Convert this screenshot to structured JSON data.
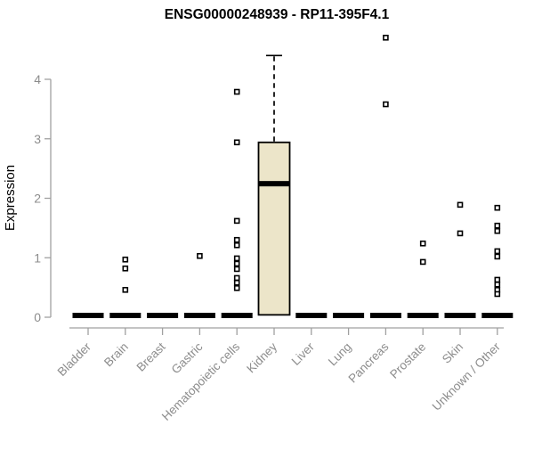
{
  "chart_data": {
    "type": "boxplot",
    "title": "ENSG00000248939 - RP11-395F4.1",
    "ylabel": "Expression",
    "xlabel": "",
    "ylim": [
      0,
      4.75
    ],
    "yticks": [
      0,
      1,
      2,
      3,
      4
    ],
    "grid": false,
    "legend": null,
    "categories": [
      "Bladder",
      "Brain",
      "Breast",
      "Gastric",
      "Hematopoietic cells",
      "Kidney",
      "Liver",
      "Lung",
      "Pancreas",
      "Prostate",
      "Skin",
      "Unknown / Other"
    ],
    "boxes": [
      {
        "category": "Bladder",
        "q1": 0,
        "median": 0,
        "q3": 0,
        "whisker_low": 0,
        "whisker_high": 0,
        "outliers": []
      },
      {
        "category": "Brain",
        "q1": 0,
        "median": 0,
        "q3": 0,
        "whisker_low": 0,
        "whisker_high": 0,
        "outliers": [
          0.97,
          0.82,
          0.46
        ]
      },
      {
        "category": "Breast",
        "q1": 0,
        "median": 0,
        "q3": 0,
        "whisker_low": 0,
        "whisker_high": 0,
        "outliers": []
      },
      {
        "category": "Gastric",
        "q1": 0,
        "median": 0,
        "q3": 0,
        "whisker_low": 0,
        "whisker_high": 0,
        "outliers": [
          1.03
        ]
      },
      {
        "category": "Hematopoietic cells",
        "q1": 0,
        "median": 0,
        "q3": 0,
        "whisker_low": 0,
        "whisker_high": 0,
        "outliers": [
          3.79,
          2.94,
          1.62,
          1.3,
          1.21,
          0.99,
          0.9,
          0.81,
          0.66,
          0.58,
          0.49
        ]
      },
      {
        "category": "Kidney",
        "q1": 0.04,
        "median": 2.23,
        "q3": 2.94,
        "whisker_low": 0.04,
        "whisker_high": 4.4,
        "outliers": []
      },
      {
        "category": "Liver",
        "q1": 0,
        "median": 0,
        "q3": 0,
        "whisker_low": 0,
        "whisker_high": 0,
        "outliers": []
      },
      {
        "category": "Lung",
        "q1": 0,
        "median": 0,
        "q3": 0,
        "whisker_low": 0,
        "whisker_high": 0,
        "outliers": []
      },
      {
        "category": "Pancreas",
        "q1": 0,
        "median": 0,
        "q3": 0,
        "whisker_low": 0,
        "whisker_high": 0,
        "outliers": [
          4.7,
          3.58
        ]
      },
      {
        "category": "Prostate",
        "q1": 0,
        "median": 0,
        "q3": 0,
        "whisker_low": 0,
        "whisker_high": 0,
        "outliers": [
          1.24,
          0.93
        ]
      },
      {
        "category": "Skin",
        "q1": 0,
        "median": 0,
        "q3": 0,
        "whisker_low": 0,
        "whisker_high": 0,
        "outliers": [
          1.89,
          1.41
        ]
      },
      {
        "category": "Unknown / Other",
        "q1": 0,
        "median": 0,
        "q3": 0,
        "whisker_low": 0,
        "whisker_high": 0,
        "outliers": [
          1.84,
          1.54,
          1.45,
          1.11,
          1.02,
          0.63,
          0.55,
          0.46,
          0.39
        ]
      }
    ],
    "colors": {
      "box_fill": "#ece5c9",
      "box_stroke": "#000000",
      "median": "#000000",
      "outlier_fill": "#ffffff",
      "outlier_stroke": "#000000",
      "axis": "#a0a0a0",
      "tick_text": "#8c8c8c",
      "title": "#000000"
    }
  }
}
